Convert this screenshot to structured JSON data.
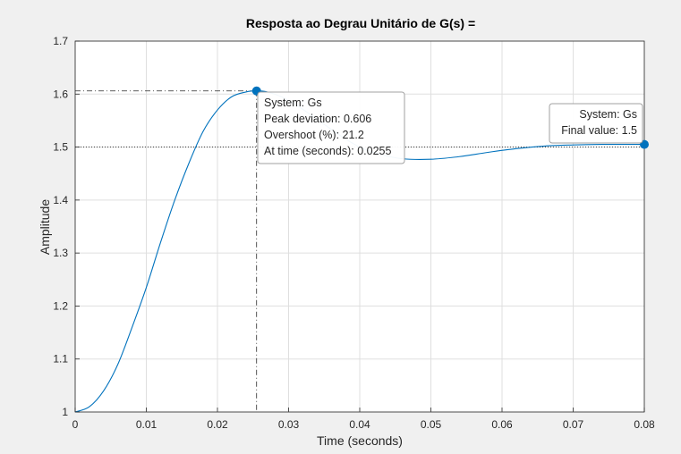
{
  "chart_data": {
    "type": "line",
    "title": "Resposta ao Degrau Unitário de G(s) =",
    "xlabel": "Time (seconds)",
    "ylabel": "Amplitude",
    "xlim": [
      0,
      0.08
    ],
    "ylim": [
      1,
      1.7
    ],
    "grid": true,
    "xticks": [
      0,
      0.01,
      0.02,
      0.03,
      0.04,
      0.05,
      0.06,
      0.07,
      0.08
    ],
    "xtick_labels": [
      "0",
      "0.01",
      "0.02",
      "0.03",
      "0.04",
      "0.05",
      "0.06",
      "0.07",
      "0.08"
    ],
    "yticks": [
      1,
      1.1,
      1.2,
      1.3,
      1.4,
      1.5,
      1.6,
      1.7
    ],
    "ytick_labels": [
      "1",
      "1.1",
      "1.2",
      "1.3",
      "1.4",
      "1.5",
      "1.6",
      "1.7"
    ],
    "series": [
      {
        "name": "Gs",
        "color": "#0072BD",
        "x": [
          0,
          0.002,
          0.004,
          0.006,
          0.008,
          0.01,
          0.012,
          0.014,
          0.016,
          0.018,
          0.02,
          0.022,
          0.024,
          0.0255,
          0.027,
          0.029,
          0.031,
          0.033,
          0.035,
          0.037,
          0.04,
          0.043,
          0.046,
          0.05,
          0.054,
          0.058,
          0.062,
          0.066,
          0.07,
          0.074,
          0.078,
          0.08
        ],
        "y": [
          1.0,
          1.01,
          1.04,
          1.09,
          1.16,
          1.235,
          1.32,
          1.4,
          1.47,
          1.53,
          1.57,
          1.595,
          1.604,
          1.606,
          1.604,
          1.595,
          1.58,
          1.562,
          1.543,
          1.524,
          1.5,
          1.486,
          1.478,
          1.477,
          1.482,
          1.49,
          1.497,
          1.502,
          1.504,
          1.505,
          1.505,
          1.505
        ]
      }
    ],
    "markers": [
      {
        "name": "peak",
        "x": 0.0255,
        "y": 1.606,
        "lines": [
          "System: Gs",
          "Peak deviation: 0.606",
          "Overshoot (%): 21.2",
          "At time (seconds): 0.0255"
        ]
      },
      {
        "name": "final",
        "x": 0.08,
        "y": 1.505,
        "lines": [
          "System: Gs",
          "Final value: 1.5"
        ]
      }
    ],
    "reference_line": {
      "y": 1.5,
      "style": "dotted"
    },
    "peak_guides": {
      "style": "dash-dot"
    }
  }
}
